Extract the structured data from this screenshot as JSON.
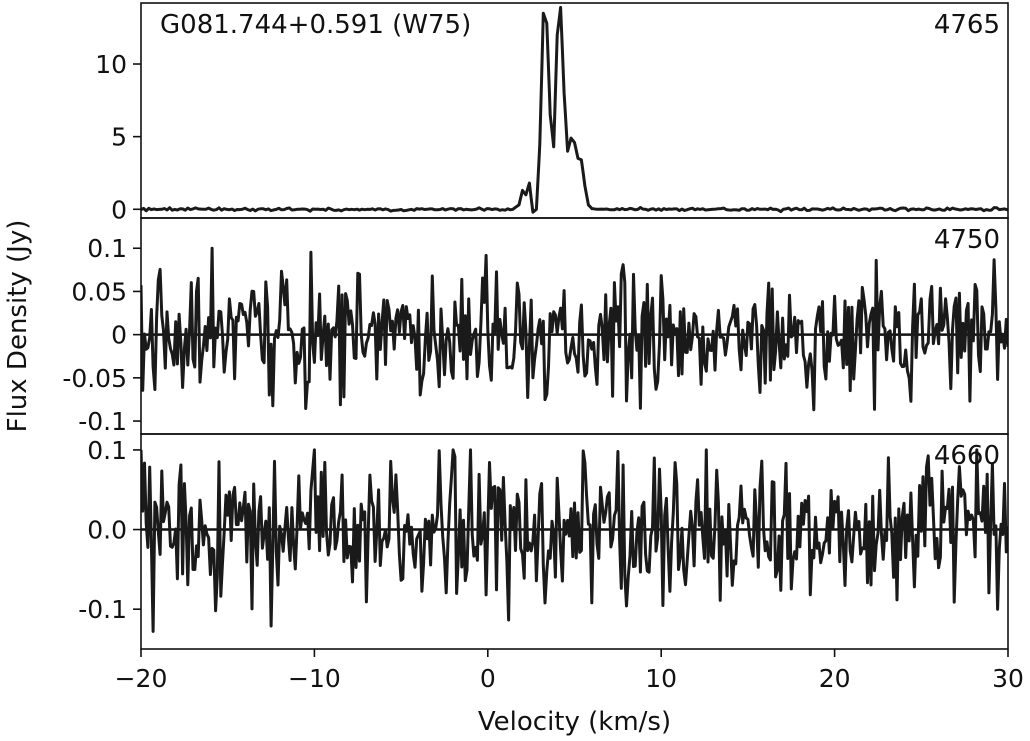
{
  "chart_data": {
    "type": "line",
    "xlabel": "Velocity (km/s)",
    "ylabel": "Flux Density (Jy)",
    "xlim": [
      -20,
      30
    ],
    "xticks": [
      {
        "value": -20,
        "label": "−20"
      },
      {
        "value": -10,
        "label": "−10"
      },
      {
        "value": 0,
        "label": "0"
      },
      {
        "value": 10,
        "label": "10"
      },
      {
        "value": 20,
        "label": "20"
      },
      {
        "value": 30,
        "label": "30"
      }
    ],
    "panels": [
      {
        "title": "G081.744+0.591 (W75)",
        "frequency_label": "4765",
        "ylim": [
          -0.6,
          14.2
        ],
        "yticks": [
          {
            "value": 0,
            "label": "0"
          },
          {
            "value": 5,
            "label": "5"
          },
          {
            "value": 10,
            "label": "10"
          }
        ],
        "series": [
          {
            "x": [
              -20,
              1.5,
              1.8,
              2.0,
              2.2,
              2.4,
              2.6,
              2.8,
              3.0,
              3.2,
              3.4,
              3.6,
              3.8,
              4.0,
              4.2,
              4.4,
              4.6,
              4.8,
              5.0,
              5.2,
              5.4,
              5.6,
              5.8,
              6.0,
              6.3,
              30
            ],
            "y": [
              0,
              0.05,
              0.3,
              1.3,
              1.0,
              1.8,
              -0.2,
              0.0,
              4.5,
              13.5,
              12.8,
              6.5,
              4.3,
              12.0,
              13.9,
              8.0,
              4.0,
              4.9,
              4.6,
              3.5,
              3.4,
              1.6,
              0.3,
              0.05,
              0.0,
              0.0
            ]
          }
        ]
      },
      {
        "title": "",
        "frequency_label": "4750",
        "ylim": [
          -0.115,
          0.135
        ],
        "yticks": [
          {
            "value": 0.1,
            "label": "0.1"
          },
          {
            "value": 0.05,
            "label": "0.05"
          },
          {
            "value": 0,
            "label": "0"
          },
          {
            "value": -0.05,
            "label": "-0.05"
          },
          {
            "value": -0.1,
            "label": "-0.1"
          }
        ],
        "zero_line": true,
        "noise": {
          "seed": 4750,
          "rms": 0.035,
          "xstep": 0.1,
          "ymin": -0.1,
          "ymax": 0.1
        }
      },
      {
        "title": "",
        "frequency_label": "4660",
        "ylim": [
          -0.15,
          0.12
        ],
        "yticks": [
          {
            "value": 0.1,
            "label": "0.1"
          },
          {
            "value": 0.0,
            "label": "0.0"
          },
          {
            "value": -0.1,
            "label": "-0.1"
          }
        ],
        "zero_line": true,
        "noise": {
          "seed": 4660,
          "rms": 0.042,
          "xstep": 0.1,
          "ymin": -0.14,
          "ymax": 0.1
        }
      }
    ]
  }
}
